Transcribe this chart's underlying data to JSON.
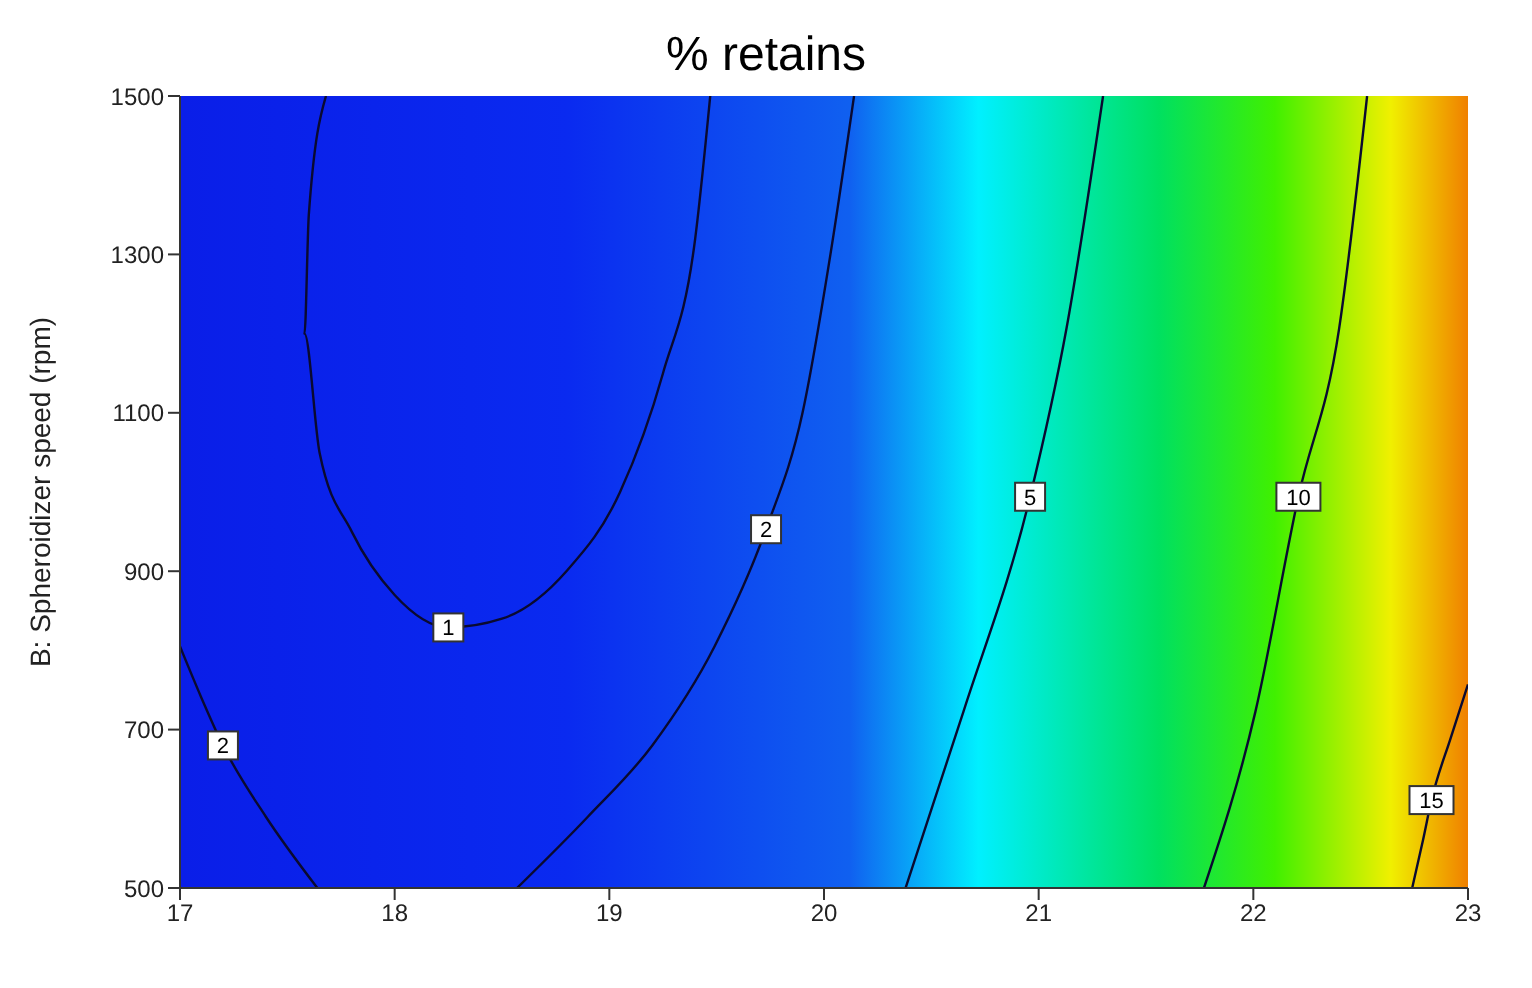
{
  "chart_data": {
    "type": "line",
    "title": "% retains",
    "ylabel": "B: Spheroidizer speed (rpm)",
    "xlim": [
      17,
      23
    ],
    "xticks": [
      17,
      18,
      19,
      20,
      21,
      22,
      23
    ],
    "ylim": [
      500,
      1500
    ],
    "yticks": [
      500,
      700,
      900,
      1100,
      1300,
      1500
    ],
    "marker": "none",
    "line_style": "solid",
    "series": [
      {
        "name": "1",
        "color": "#0a0a30",
        "x": [
          17.68,
          17.6,
          17.58,
          17.65,
          17.8,
          18.0,
          18.25,
          18.5,
          18.8,
          19.05,
          19.25,
          19.4,
          19.47
        ],
        "values": [
          1500,
          1350,
          1200,
          1050,
          950,
          870,
          829,
          840,
          900,
          1000,
          1150,
          1320,
          1500
        ]
      },
      {
        "name": "2",
        "color": "#0a0a30",
        "x": [
          17,
          17.1,
          17.2,
          17.4,
          17.64
        ],
        "values": [
          805,
          740,
          680,
          590,
          500
        ]
      },
      {
        "name": "2",
        "color": "#0a0a30",
        "x": [
          18.57,
          18.9,
          19.2,
          19.49,
          19.73,
          19.9,
          20.03,
          20.14
        ],
        "values": [
          500,
          590,
          680,
          805,
          953,
          1100,
          1300,
          1500
        ]
      },
      {
        "name": "5",
        "color": "#0a0a30",
        "x": [
          20.38,
          20.65,
          20.96,
          21.13,
          21.3
        ],
        "values": [
          500,
          723,
          994,
          1207,
          1500
        ]
      },
      {
        "name": "10",
        "color": "#0a0a30",
        "x": [
          21.77,
          22.01,
          22.21,
          22.4,
          22.53
        ],
        "values": [
          500,
          723,
          994,
          1207,
          1500
        ]
      },
      {
        "name": "15",
        "color": "#0a0a30",
        "x": [
          22.74,
          22.79,
          22.83,
          22.92,
          23
        ],
        "values": [
          500,
          560,
          611,
          690,
          757
        ]
      }
    ]
  }
}
